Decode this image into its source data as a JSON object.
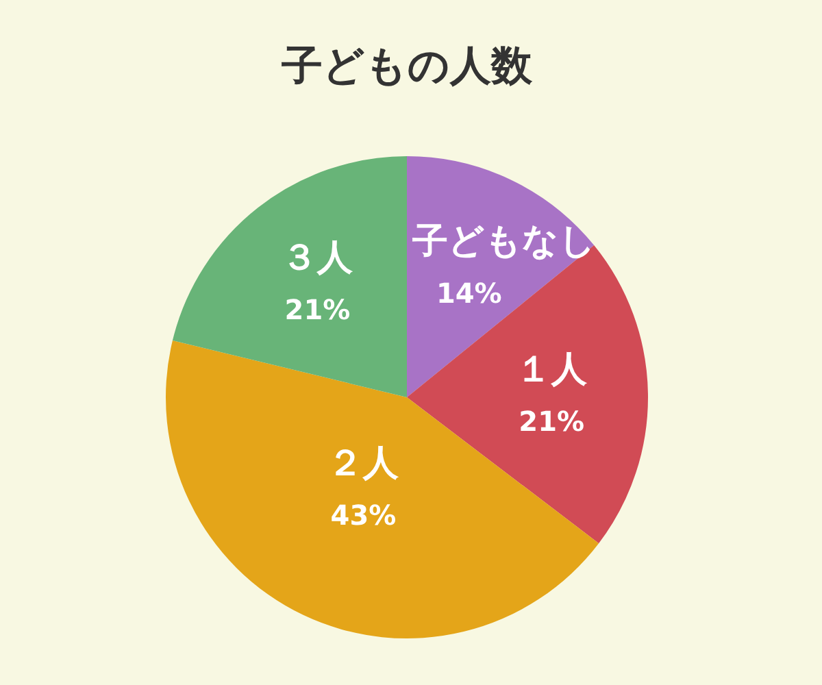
{
  "chart_data": {
    "type": "pie",
    "title": "子どもの人数",
    "categories": [
      "子どもなし",
      "１人",
      "２人",
      "３人"
    ],
    "values": [
      14,
      21,
      43,
      21
    ],
    "colors": [
      "#a873c6",
      "#d14b55",
      "#e4a519",
      "#68b478"
    ],
    "value_labels": [
      "14%",
      "21%",
      "43%",
      "21%"
    ]
  }
}
